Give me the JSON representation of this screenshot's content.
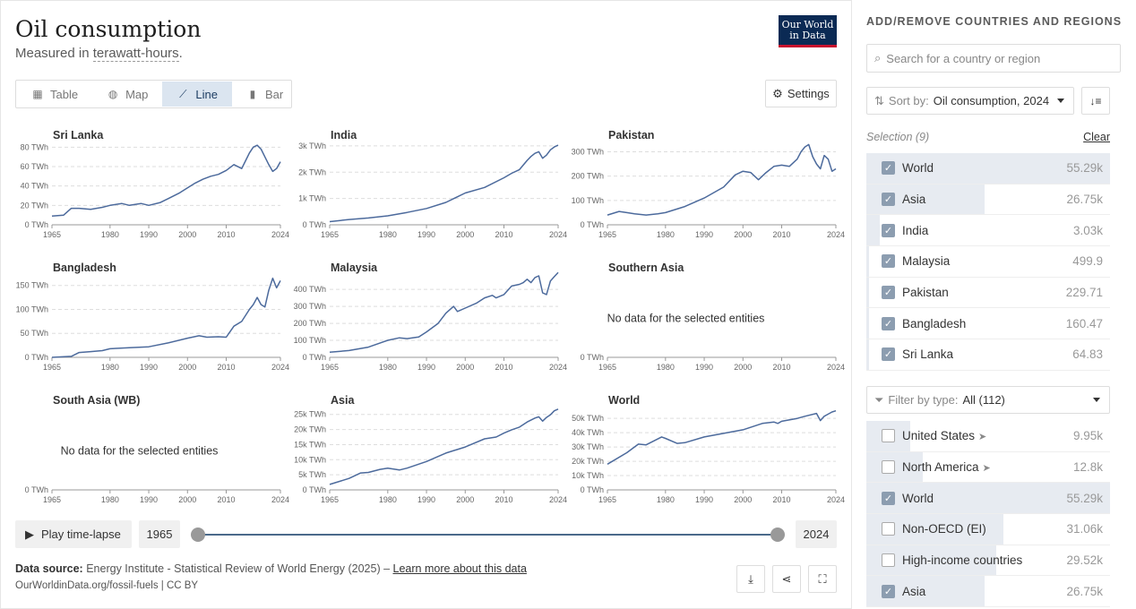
{
  "header": {
    "title": "Oil consumption",
    "subtitle_prefix": "Measured in ",
    "subtitle_unit": "terawatt-hours",
    "subtitle_suffix": ".",
    "logo_line1": "Our World",
    "logo_line2": "in Data"
  },
  "tabs": [
    {
      "label": "Table",
      "icon": "table-icon"
    },
    {
      "label": "Map",
      "icon": "globe-icon"
    },
    {
      "label": "Line",
      "icon": "line-chart-icon",
      "active": true
    },
    {
      "label": "Bar",
      "icon": "bar-chart-icon"
    }
  ],
  "settings_label": "Settings",
  "no_data_text": "No data for the selected entities",
  "timeline": {
    "play_label": "Play time-lapse",
    "start_year": "1965",
    "end_year": "2024"
  },
  "footer": {
    "source_label": "Data source:",
    "source_text": "Energy Institute - Statistical Review of World Energy (2025) –",
    "learn_more": "Learn more about this data",
    "url": "OurWorldinData.org/fossil-fuels | CC BY"
  },
  "sidebar": {
    "title": "ADD/REMOVE COUNTRIES AND REGIONS",
    "search_placeholder": "Search for a country or region",
    "sort_label": "Sort by:",
    "sort_value": "Oil consumption, 2024",
    "selection_label": "Selection (9)",
    "clear_label": "Clear",
    "filter_label": "Filter by type:",
    "filter_value": "All (112)",
    "selected": [
      {
        "name": "World",
        "value": "55.29k",
        "checked": true,
        "share": 1.0
      },
      {
        "name": "Asia",
        "value": "26.75k",
        "checked": true,
        "share": 0.484
      },
      {
        "name": "India",
        "value": "3.03k",
        "checked": true,
        "share": 0.055
      },
      {
        "name": "Malaysia",
        "value": "499.9",
        "checked": true,
        "share": 0.009
      },
      {
        "name": "Pakistan",
        "value": "229.71",
        "checked": true,
        "share": 0.004
      },
      {
        "name": "Bangladesh",
        "value": "160.47",
        "checked": true,
        "share": 0.003
      },
      {
        "name": "Sri Lanka",
        "value": "64.83",
        "checked": true,
        "share": 0.001
      }
    ],
    "all": [
      {
        "name": "United States",
        "value": "9.95k",
        "checked": false,
        "share": 0.18,
        "arrow": true
      },
      {
        "name": "North America",
        "value": "12.8k",
        "checked": false,
        "share": 0.232,
        "arrow": true
      },
      {
        "name": "World",
        "value": "55.29k",
        "checked": true,
        "share": 1.0
      },
      {
        "name": "Non-OECD (EI)",
        "value": "31.06k",
        "checked": false,
        "share": 0.562
      },
      {
        "name": "High-income countries",
        "value": "29.52k",
        "checked": false,
        "share": 0.534
      },
      {
        "name": "Asia",
        "value": "26.75k",
        "checked": true,
        "share": 0.484
      }
    ]
  },
  "chart_data": [
    {
      "type": "line",
      "title": "Sri Lanka",
      "x_ticks": [
        1965,
        1980,
        1990,
        2000,
        2010,
        2024
      ],
      "y_ticks": [
        0,
        20,
        40,
        60,
        80
      ],
      "y_tick_labels": [
        "0 TWh",
        "20 TWh",
        "40 TWh",
        "60 TWh",
        "80 TWh"
      ],
      "ylim": [
        0,
        84
      ],
      "x": [
        1965,
        1968,
        1970,
        1972,
        1975,
        1978,
        1980,
        1983,
        1985,
        1988,
        1990,
        1993,
        1995,
        1998,
        2000,
        2002,
        2004,
        2006,
        2008,
        2010,
        2012,
        2014,
        2015,
        2016,
        2017,
        2018,
        2019,
        2020,
        2021,
        2022,
        2023,
        2024
      ],
      "y": [
        9,
        10,
        17,
        17,
        16,
        18,
        20,
        22,
        20,
        22,
        20,
        23,
        27,
        33,
        38,
        43,
        47,
        50,
        52,
        56,
        62,
        58,
        66,
        74,
        80,
        82,
        78,
        70,
        62,
        55,
        58,
        65
      ],
      "color": "#4c6a9c"
    },
    {
      "type": "line",
      "title": "India",
      "x_ticks": [
        1965,
        1980,
        1990,
        2000,
        2010,
        2024
      ],
      "y_ticks": [
        0,
        1000,
        2000,
        3000
      ],
      "y_tick_labels": [
        "0 TWh",
        "1k TWh",
        "2k TWh",
        "3k TWh"
      ],
      "ylim": [
        0,
        3100
      ],
      "x": [
        1965,
        1970,
        1975,
        1980,
        1985,
        1990,
        1995,
        2000,
        2005,
        2010,
        2012,
        2014,
        2016,
        2017,
        2018,
        2019,
        2020,
        2021,
        2022,
        2023,
        2024
      ],
      "y": [
        120,
        200,
        260,
        340,
        470,
        620,
        850,
        1210,
        1420,
        1790,
        1960,
        2100,
        2450,
        2600,
        2720,
        2780,
        2530,
        2650,
        2850,
        2960,
        3030
      ],
      "color": "#4c6a9c"
    },
    {
      "type": "line",
      "title": "Pakistan",
      "x_ticks": [
        1965,
        1980,
        1990,
        2000,
        2010,
        2024
      ],
      "y_ticks": [
        0,
        100,
        200,
        300
      ],
      "y_tick_labels": [
        "0 TWh",
        "100 TWh",
        "200 TWh",
        "300 TWh"
      ],
      "ylim": [
        0,
        335
      ],
      "x": [
        1965,
        1968,
        1970,
        1972,
        1975,
        1978,
        1980,
        1985,
        1990,
        1995,
        1998,
        2000,
        2002,
        2004,
        2006,
        2008,
        2010,
        2012,
        2014,
        2015,
        2016,
        2017,
        2018,
        2019,
        2020,
        2021,
        2022,
        2023,
        2024
      ],
      "y": [
        40,
        55,
        50,
        45,
        40,
        45,
        50,
        75,
        110,
        155,
        205,
        220,
        215,
        185,
        215,
        240,
        245,
        240,
        270,
        300,
        320,
        330,
        280,
        250,
        230,
        285,
        270,
        220,
        230
      ],
      "color": "#4c6a9c"
    },
    {
      "type": "line",
      "title": "Bangladesh",
      "x_ticks": [
        1965,
        1980,
        1990,
        2000,
        2010,
        2024
      ],
      "y_ticks": [
        0,
        50,
        100,
        150
      ],
      "y_tick_labels": [
        "0 TWh",
        "50 TWh",
        "100 TWh",
        "150 TWh"
      ],
      "ylim": [
        0,
        170
      ],
      "x": [
        1965,
        1970,
        1972,
        1975,
        1978,
        1980,
        1985,
        1990,
        1995,
        2000,
        2003,
        2005,
        2008,
        2010,
        2012,
        2014,
        2016,
        2017,
        2018,
        2019,
        2020,
        2021,
        2022,
        2023,
        2024
      ],
      "y": [
        0,
        2,
        10,
        12,
        14,
        18,
        20,
        22,
        30,
        40,
        45,
        42,
        43,
        42,
        65,
        75,
        100,
        110,
        125,
        110,
        105,
        140,
        165,
        145,
        160
      ],
      "color": "#4c6a9c"
    },
    {
      "type": "line",
      "title": "Malaysia",
      "x_ticks": [
        1965,
        1980,
        1990,
        2000,
        2010,
        2024
      ],
      "y_ticks": [
        0,
        100,
        200,
        300,
        400
      ],
      "y_tick_labels": [
        "0 TWh",
        "100 TWh",
        "200 TWh",
        "300 TWh",
        "400 TWh"
      ],
      "ylim": [
        0,
        480
      ],
      "x": [
        1965,
        1970,
        1975,
        1980,
        1983,
        1985,
        1988,
        1990,
        1993,
        1995,
        1997,
        1998,
        2000,
        2003,
        2005,
        2007,
        2008,
        2010,
        2012,
        2014,
        2015,
        2016,
        2017,
        2018,
        2019,
        2020,
        2021,
        2022,
        2023,
        2024
      ],
      "y": [
        30,
        40,
        60,
        100,
        115,
        110,
        120,
        150,
        200,
        260,
        300,
        270,
        290,
        320,
        350,
        365,
        350,
        370,
        420,
        430,
        440,
        460,
        440,
        470,
        480,
        380,
        370,
        450,
        475,
        500
      ],
      "color": "#4c6a9c"
    },
    {
      "type": "line",
      "title": "Southern Asia",
      "x_ticks": [
        1965,
        1980,
        1990,
        2000,
        2010,
        2024
      ],
      "y_ticks": [
        0
      ],
      "y_tick_labels": [
        "0 TWh"
      ],
      "ylim": [
        0,
        1
      ],
      "x": [],
      "y": [],
      "no_data": true
    },
    {
      "type": "line",
      "title": "South Asia (WB)",
      "x_ticks": [
        1965,
        1980,
        1990,
        2000,
        2010,
        2024
      ],
      "y_ticks": [
        0
      ],
      "y_tick_labels": [
        "0 TWh"
      ],
      "ylim": [
        0,
        1
      ],
      "x": [],
      "y": [],
      "no_data": true
    },
    {
      "type": "line",
      "title": "Asia",
      "x_ticks": [
        1965,
        1980,
        1990,
        2000,
        2010,
        2024
      ],
      "y_ticks": [
        0,
        5000,
        10000,
        15000,
        20000,
        25000
      ],
      "y_tick_labels": [
        "0 TWh",
        "5k TWh",
        "10k TWh",
        "15k TWh",
        "20k TWh",
        "25k TWh"
      ],
      "ylim": [
        0,
        27000
      ],
      "x": [
        1965,
        1970,
        1973,
        1975,
        1978,
        1980,
        1983,
        1985,
        1990,
        1995,
        2000,
        2005,
        2008,
        2010,
        2012,
        2014,
        2016,
        2018,
        2019,
        2020,
        2021,
        2022,
        2023,
        2024
      ],
      "y": [
        1800,
        3800,
        5600,
        5800,
        6800,
        7200,
        6600,
        7200,
        9400,
        12200,
        14200,
        16900,
        17500,
        18800,
        19900,
        20800,
        22500,
        23800,
        24200,
        22800,
        24000,
        24900,
        26200,
        26750
      ],
      "color": "#4c6a9c"
    },
    {
      "type": "line",
      "title": "World",
      "x_ticks": [
        1965,
        1980,
        1990,
        2000,
        2010,
        2024
      ],
      "y_ticks": [
        0,
        10000,
        20000,
        30000,
        40000,
        50000
      ],
      "y_tick_labels": [
        "0 TWh",
        "10k TWh",
        "20k TWh",
        "30k TWh",
        "40k TWh",
        "50k TWh"
      ],
      "ylim": [
        0,
        57000
      ],
      "x": [
        1965,
        1970,
        1973,
        1975,
        1979,
        1980,
        1983,
        1985,
        1990,
        1995,
        2000,
        2005,
        2008,
        2009,
        2010,
        2014,
        2016,
        2019,
        2020,
        2021,
        2022,
        2023,
        2024
      ],
      "y": [
        18000,
        26000,
        32000,
        31500,
        37000,
        36000,
        32500,
        33000,
        37000,
        39500,
        42000,
        46500,
        47500,
        46500,
        48000,
        50000,
        51500,
        53500,
        48500,
        51500,
        53000,
        54500,
        55290
      ],
      "color": "#4c6a9c"
    }
  ]
}
